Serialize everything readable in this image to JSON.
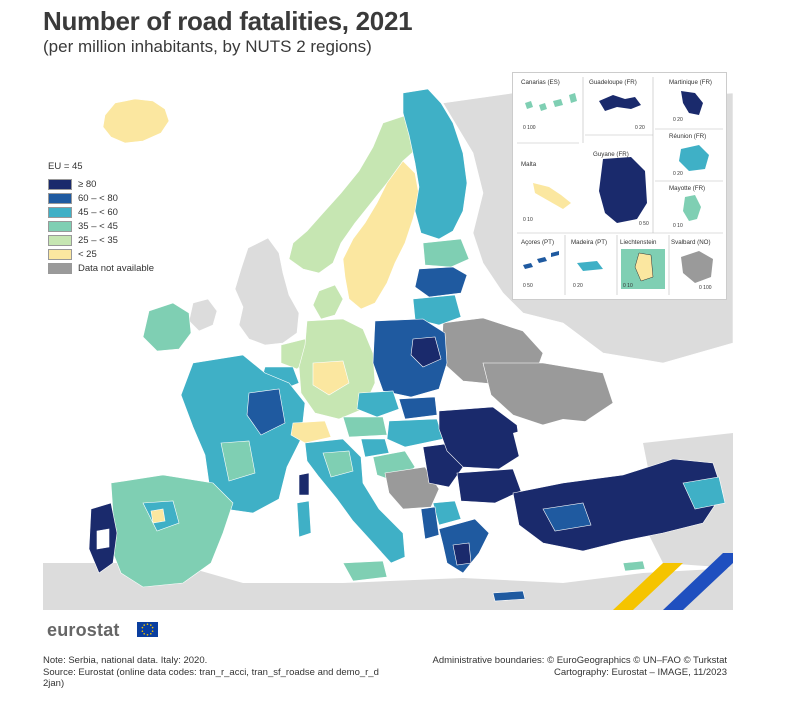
{
  "header": {
    "title": "Number of road fatalities, 2021",
    "subtitle": "(per million inhabitants, by NUTS 2 regions)"
  },
  "legend": {
    "title": "EU = 45",
    "items": [
      {
        "label": "≥ 80",
        "color": "#1a2a6c"
      },
      {
        "label": "60 – < 80",
        "color": "#1f5aa0"
      },
      {
        "label": "45 – < 60",
        "color": "#3fb0c6"
      },
      {
        "label": "35 – < 45",
        "color": "#7fcfb3"
      },
      {
        "label": "25 – < 35",
        "color": "#c6e6b2"
      },
      {
        "label": "< 25",
        "color": "#fbe7a0"
      },
      {
        "label": "Data not available",
        "color": "#9a9a9a"
      }
    ]
  },
  "colors": {
    "background_land": "#dcdcdc",
    "sea": "#ffffff",
    "very_high": "#1a2a6c",
    "high": "#1f5aa0",
    "mid_high": "#3fb0c6",
    "mid": "#7fcfb3",
    "low": "#c6e6b2",
    "very_low": "#fbe7a0",
    "na": "#9a9a9a",
    "accent_blue": "#1f4fbf",
    "accent_yellow": "#f5c400"
  },
  "insets": {
    "canarias": "Canarias (ES)",
    "guadeloupe": "Guadeloupe (FR)",
    "martinique": "Martinique (FR)",
    "reunion": "Réunion (FR)",
    "malta": "Malta",
    "guyane": "Guyane (FR)",
    "mayotte": "Mayotte (FR)",
    "acores": "Açores (PT)",
    "madeira": "Madeira (PT)",
    "liechtenstein": "Liechtenstein",
    "svalbard": "Svalbard (NO)",
    "scales": {
      "canarias": "0   100",
      "guadeloupe": "0   20",
      "martinique": "0   20",
      "reunion": "0   20",
      "malta": "0   10",
      "guyane": "0  50",
      "mayotte": "0   10",
      "acores": "0   50",
      "madeira": "0  20",
      "liechtenstein": "0   10",
      "svalbard": "0 100"
    }
  },
  "footer": {
    "logo": "eurostat",
    "note_line1": "Note: Serbia, national data. Italy: 2020.",
    "note_line2": "Source: Eurostat (online data codes: tran_r_acci, tran_sf_roadse and demo_r_d",
    "note_line3": "2jan)",
    "credit_line1": "Administrative boundaries: © EuroGeographics © UN–FAO © Turkstat",
    "credit_line2": "Cartography: Eurostat – IMAGE, 11/2023"
  }
}
